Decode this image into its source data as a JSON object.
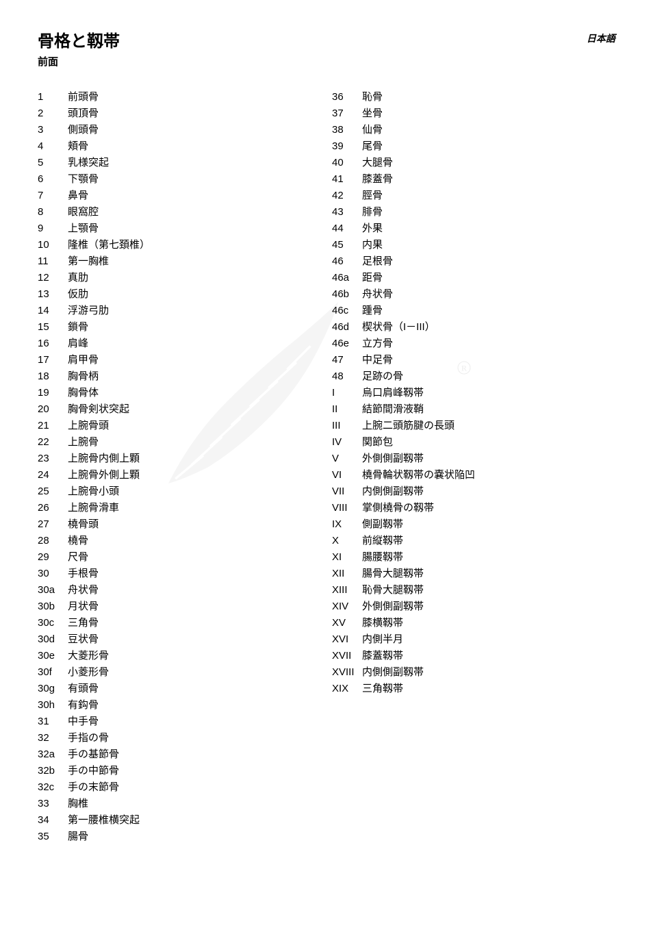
{
  "header": {
    "title": "骨格と靱帯",
    "lang": "日本語",
    "subtitle": "前面"
  },
  "left_column": [
    {
      "num": "1",
      "label": "前頭骨"
    },
    {
      "num": "2",
      "label": "頭頂骨"
    },
    {
      "num": "3",
      "label": "側頭骨"
    },
    {
      "num": "4",
      "label": "頬骨"
    },
    {
      "num": "5",
      "label": "乳様突起"
    },
    {
      "num": "6",
      "label": "下顎骨"
    },
    {
      "num": "7",
      "label": "鼻骨"
    },
    {
      "num": "8",
      "label": "眼窩腔"
    },
    {
      "num": "9",
      "label": "上顎骨"
    },
    {
      "num": "10",
      "label": "隆椎（第七頚椎）"
    },
    {
      "num": "11",
      "label": "第一胸椎"
    },
    {
      "num": "12",
      "label": "真肋"
    },
    {
      "num": "13",
      "label": "仮肋"
    },
    {
      "num": "14",
      "label": "浮游弓肋"
    },
    {
      "num": "15",
      "label": "鎖骨"
    },
    {
      "num": "16",
      "label": "肩峰"
    },
    {
      "num": "17",
      "label": "肩甲骨"
    },
    {
      "num": "18",
      "label": "胸骨柄"
    },
    {
      "num": "19",
      "label": "胸骨体"
    },
    {
      "num": "20",
      "label": "胸骨剣状突起"
    },
    {
      "num": "21",
      "label": "上腕骨頭"
    },
    {
      "num": "22",
      "label": "上腕骨"
    },
    {
      "num": "23",
      "label": "上腕骨内側上顆"
    },
    {
      "num": "24",
      "label": "上腕骨外側上顆"
    },
    {
      "num": "25",
      "label": "上腕骨小頭"
    },
    {
      "num": "26",
      "label": "上腕骨滑車"
    },
    {
      "num": "27",
      "label": "橈骨頭"
    },
    {
      "num": "28",
      "label": "橈骨"
    },
    {
      "num": "29",
      "label": "尺骨"
    },
    {
      "num": "30",
      "label": "手根骨"
    },
    {
      "num": "30a",
      "label": "舟状骨"
    },
    {
      "num": "30b",
      "label": "月状骨"
    },
    {
      "num": "30c",
      "label": "三角骨"
    },
    {
      "num": "30d",
      "label": "豆状骨"
    },
    {
      "num": "30e",
      "label": "大菱形骨"
    },
    {
      "num": "30f",
      "label": "小菱形骨"
    },
    {
      "num": "30g",
      "label": "有頭骨"
    },
    {
      "num": "30h",
      "label": "有鈎骨"
    },
    {
      "num": "31",
      "label": "中手骨"
    },
    {
      "num": "32",
      "label": "手指の骨"
    },
    {
      "num": "32a",
      "label": "手の基節骨"
    },
    {
      "num": "32b",
      "label": "手の中節骨"
    },
    {
      "num": "32c",
      "label": "手の末節骨"
    },
    {
      "num": "33",
      "label": "胸椎"
    },
    {
      "num": "34",
      "label": "第一腰椎横突起"
    },
    {
      "num": "35",
      "label": "腸骨"
    }
  ],
  "right_column": [
    {
      "num": "36",
      "label": "恥骨"
    },
    {
      "num": "37",
      "label": "坐骨"
    },
    {
      "num": "38",
      "label": "仙骨"
    },
    {
      "num": "39",
      "label": "尾骨"
    },
    {
      "num": "40",
      "label": "大腿骨"
    },
    {
      "num": "41",
      "label": "膝蓋骨"
    },
    {
      "num": "42",
      "label": "脛骨"
    },
    {
      "num": "43",
      "label": "腓骨"
    },
    {
      "num": "44",
      "label": "外果"
    },
    {
      "num": "45",
      "label": "内果"
    },
    {
      "num": "46",
      "label": "足根骨"
    },
    {
      "num": "46a",
      "label": "距骨"
    },
    {
      "num": "46b",
      "label": "舟状骨"
    },
    {
      "num": "46c",
      "label": "踵骨"
    },
    {
      "num": "46d",
      "label": "楔状骨（I－III）"
    },
    {
      "num": "46e",
      "label": "立方骨"
    },
    {
      "num": "47",
      "label": "中足骨"
    },
    {
      "num": "48",
      "label": "足跡の骨"
    },
    {
      "num": "I",
      "label": "烏口肩峰靱帯"
    },
    {
      "num": "II",
      "label": "結節間滑液鞘"
    },
    {
      "num": "III",
      "label": "上腕二頭筋腱の長頭"
    },
    {
      "num": "IV",
      "label": "関節包"
    },
    {
      "num": "V",
      "label": "外側側副靱帯"
    },
    {
      "num": "VI",
      "label": "橈骨輪状靱帯の嚢状陥凹"
    },
    {
      "num": "VII",
      "label": "内側側副靱帯"
    },
    {
      "num": "VIII",
      "label": "掌側橈骨の靱帯"
    },
    {
      "num": "IX",
      "label": "側副靱帯"
    },
    {
      "num": "X",
      "label": "前縦靱帯"
    },
    {
      "num": "XI",
      "label": "腸腰靱帯"
    },
    {
      "num": "XII",
      "label": "腸骨大腿靱帯"
    },
    {
      "num": "XIII",
      "label": "恥骨大腿靱帯"
    },
    {
      "num": "XIV",
      "label": "外側側副靱帯"
    },
    {
      "num": "XV",
      "label": "膝横靱帯"
    },
    {
      "num": "XVI",
      "label": "内側半月"
    },
    {
      "num": "XVII",
      "label": "膝蓋靱帯"
    },
    {
      "num": "XVIII",
      "label": "内側側副靱帯"
    },
    {
      "num": "XIX",
      "label": "三角靱帯"
    }
  ],
  "watermark": {
    "shape": "feather",
    "color": "#bdbdbd"
  },
  "r_badge": {
    "text": "R",
    "color": "#9a9a9a"
  },
  "colors": {
    "text": "#000000",
    "background": "#ffffff"
  },
  "typography": {
    "title_size": 24,
    "title_weight": 700,
    "body_size": 15,
    "line_height": 1.6
  }
}
